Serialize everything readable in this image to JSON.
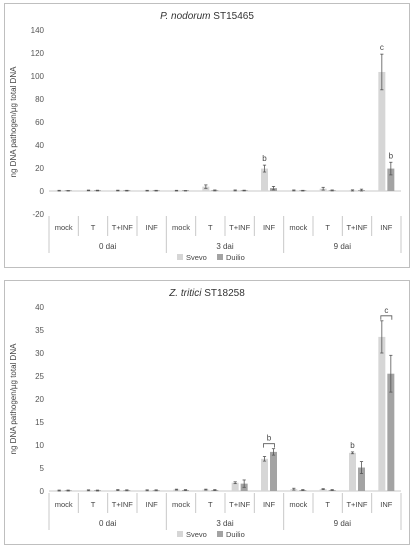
{
  "colors": {
    "svevo": "#d6d6d6",
    "duilio": "#a3a3a3",
    "axis": "#c8c8c8",
    "text": "#444444"
  },
  "chart_data": [
    {
      "type": "bar",
      "title_italic": "P. nodorum",
      "title_rest": " ST15465",
      "ylabel": "ng DNA pathogen/µg total DNA",
      "ylim": [
        -20,
        140
      ],
      "yticks": [
        "-20",
        "0",
        "20",
        "40",
        "60",
        "80",
        "100",
        "120",
        "140"
      ],
      "categories": [
        "mock",
        "T",
        "T+INF",
        "INF",
        "mock",
        "T",
        "T+INF",
        "INF",
        "mock",
        "T",
        "T+INF",
        "INF"
      ],
      "groups": [
        "0 dai",
        "3 dai",
        "9 dai"
      ],
      "series": [
        {
          "name": "Svevo",
          "values": [
            0.3,
            0.5,
            0.4,
            0.3,
            0.3,
            3.8,
            0.5,
            19.5,
            0.5,
            2.0,
            0.5,
            103.5
          ],
          "errors": [
            0.3,
            0.3,
            0.3,
            0.3,
            0.3,
            1.5,
            0.4,
            3.0,
            0.4,
            1.2,
            0.5,
            15.5
          ]
        },
        {
          "name": "Duilio",
          "values": [
            0.2,
            0.4,
            0.3,
            0.3,
            0.2,
            0.5,
            0.4,
            2.5,
            0.3,
            0.5,
            0.8,
            19.5
          ],
          "errors": [
            0.2,
            0.3,
            0.3,
            0.3,
            0.2,
            0.4,
            0.3,
            1.5,
            0.3,
            0.4,
            0.8,
            5.5
          ]
        }
      ],
      "annotations": [
        {
          "text": "b",
          "index": 7,
          "series": 0,
          "bracket": false
        },
        {
          "text": "c",
          "index": 11,
          "series": 0,
          "bracket": false
        },
        {
          "text": "b",
          "index": 11,
          "series": 1,
          "bracket": false
        }
      ],
      "legend": [
        "Svevo",
        "Duilio"
      ],
      "legend_position": "bottom"
    },
    {
      "type": "bar",
      "title_italic": "Z. tritici",
      "title_rest": " ST18258",
      "ylabel": "ng DNA pathogen/µg total DNA",
      "ylim": [
        0,
        40
      ],
      "yticks": [
        "0",
        "5",
        "10",
        "15",
        "20",
        "25",
        "30",
        "35",
        "40"
      ],
      "categories": [
        "mock",
        "T",
        "T+INF",
        "INF",
        "mock",
        "T",
        "T+INF",
        "INF",
        "mock",
        "T",
        "T+INF",
        "INF"
      ],
      "groups": [
        "0 dai",
        "3 dai",
        "9 dai"
      ],
      "series": [
        {
          "name": "Svevo",
          "values": [
            0.1,
            0.15,
            0.2,
            0.15,
            0.3,
            0.3,
            1.8,
            7.0,
            0.4,
            0.4,
            8.3,
            33.5
          ],
          "errors": [
            0.1,
            0.1,
            0.1,
            0.1,
            0.1,
            0.1,
            0.2,
            0.5,
            0.2,
            0.1,
            0.2,
            3.5
          ]
        },
        {
          "name": "Duilio",
          "values": [
            0.1,
            0.1,
            0.15,
            0.15,
            0.2,
            0.2,
            1.6,
            8.5,
            0.2,
            0.2,
            5.1,
            25.5
          ],
          "errors": [
            0.1,
            0.1,
            0.1,
            0.1,
            0.1,
            0.1,
            0.8,
            0.7,
            0.1,
            0.1,
            1.3,
            4.0
          ]
        }
      ],
      "annotations": [
        {
          "text": "b",
          "index": 7,
          "series": null,
          "bracket": true
        },
        {
          "text": "b",
          "index": 10,
          "series": 0,
          "bracket": false
        },
        {
          "text": "c",
          "index": 11,
          "series": null,
          "bracket": true
        }
      ],
      "legend": [
        "Svevo",
        "Duilio"
      ],
      "legend_position": "bottom"
    }
  ]
}
